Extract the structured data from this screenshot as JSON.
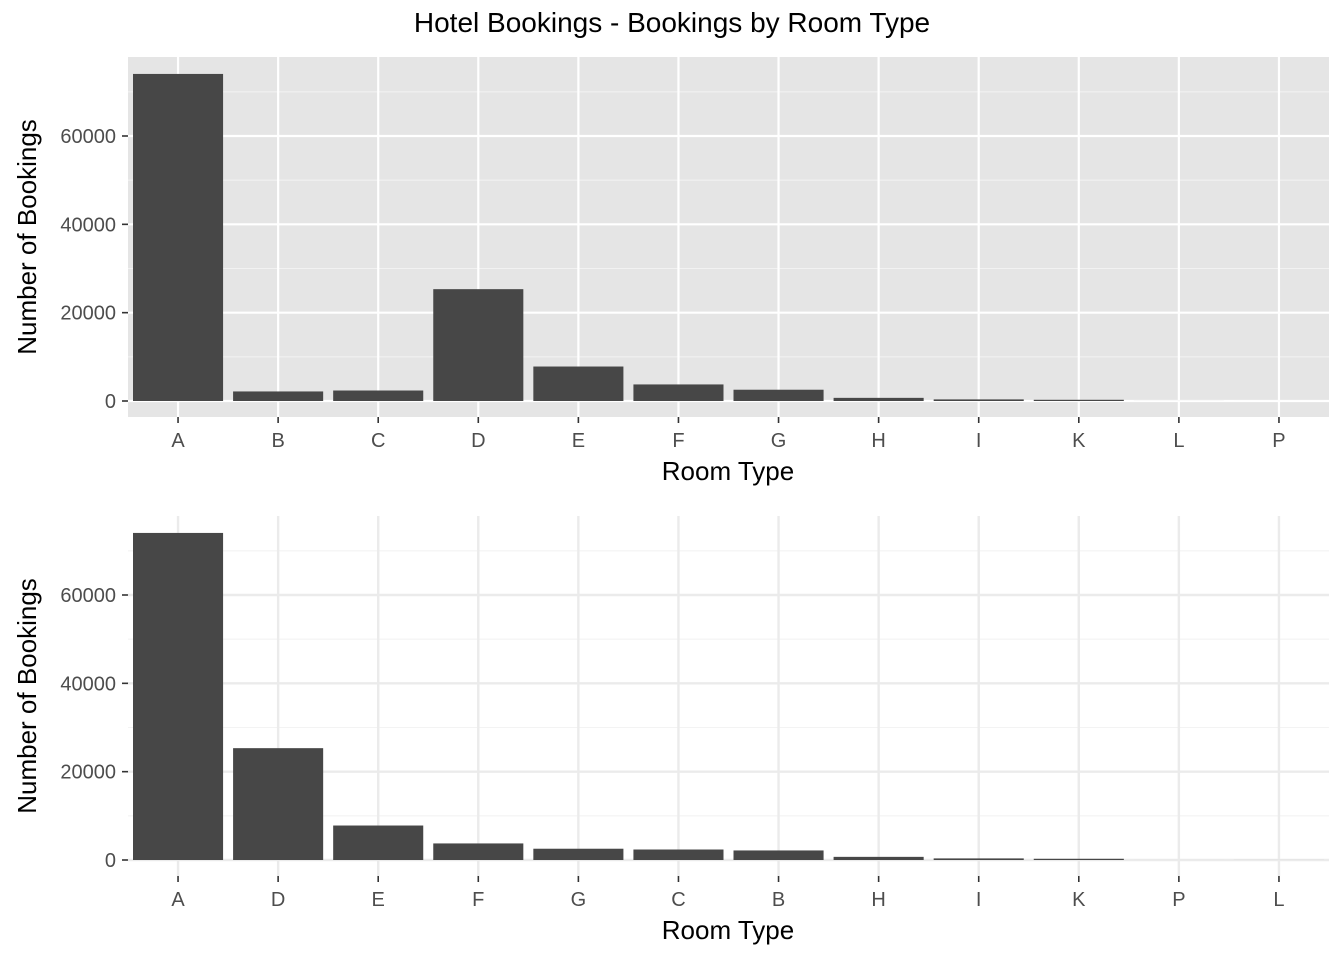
{
  "title": "Hotel Bookings - Bookings by Room Type",
  "colors": {
    "bar": "#474747",
    "panel_gray": "#e5e5e5",
    "grid_white": "#ffffff",
    "grid_light": "#ebebeb",
    "tick": "#333333"
  },
  "chart_data": [
    {
      "type": "bar",
      "theme": "gray",
      "xlabel": "Room Type",
      "ylabel": "Number of Bookings",
      "ylim": [
        0,
        70000
      ],
      "yticks": [
        0,
        20000,
        40000,
        60000
      ],
      "yticks_labels": [
        "0",
        "20000",
        "40000",
        "60000"
      ],
      "grid": true,
      "categories": [
        "A",
        "B",
        "C",
        "D",
        "E",
        "F",
        "G",
        "H",
        "I",
        "K",
        "L",
        "P"
      ],
      "values": [
        74053,
        2163,
        2375,
        25322,
        7806,
        3751,
        2553,
        712,
        363,
        279,
        6,
        2
      ]
    },
    {
      "type": "bar",
      "theme": "minimal",
      "xlabel": "Room Type",
      "ylabel": "Number of Bookings",
      "ylim": [
        0,
        70000
      ],
      "yticks": [
        0,
        20000,
        40000,
        60000
      ],
      "yticks_labels": [
        "0",
        "20000",
        "40000",
        "60000"
      ],
      "grid": true,
      "categories": [
        "A",
        "D",
        "E",
        "F",
        "G",
        "C",
        "B",
        "H",
        "I",
        "K",
        "P",
        "L"
      ],
      "values": [
        74053,
        25322,
        7806,
        3751,
        2553,
        2375,
        2163,
        712,
        363,
        279,
        2,
        6
      ]
    }
  ]
}
